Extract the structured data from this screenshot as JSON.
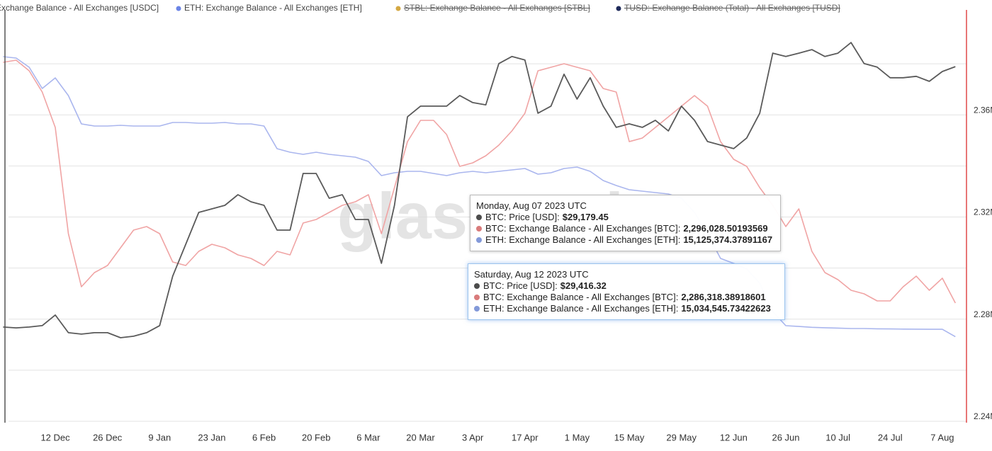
{
  "chart_data": {
    "type": "line",
    "watermark": "glassnode",
    "legend_items": [
      {
        "name": "Exchange Balance - All Exchanges [USDC]",
        "color": null,
        "hidden": false
      },
      {
        "name": "ETH: Exchange Balance - All Exchanges [ETH]",
        "color": "#6b84e6",
        "hidden": false
      },
      {
        "name": "STBL: Exchange Balance - All Exchanges [STBL]",
        "color": "#d4a843",
        "hidden": true
      },
      {
        "name": "TUSD: Exchange Balance (Total) - All Exchanges [TUSD]",
        "color": "#1e2a5a",
        "hidden": true
      }
    ],
    "categories": [
      null,
      null,
      null,
      null,
      "12 Dec",
      null,
      null,
      null,
      "26 Dec",
      null,
      null,
      null,
      "9 Jan",
      null,
      null,
      null,
      "23 Jan",
      null,
      null,
      null,
      "6 Feb",
      null,
      null,
      null,
      "20 Feb",
      null,
      null,
      null,
      "6 Mar",
      null,
      null,
      null,
      "20 Mar",
      null,
      null,
      null,
      "3 Apr",
      null,
      null,
      null,
      "17 Apr",
      null,
      null,
      null,
      "1 May",
      null,
      null,
      null,
      "15 May",
      null,
      null,
      null,
      "29 May",
      null,
      null,
      null,
      "12 Jun",
      null,
      null,
      null,
      "26 Jun",
      null,
      null,
      null,
      "10 Jul",
      null,
      null,
      null,
      "24 Jul",
      null,
      null,
      null,
      "7 Aug",
      null
    ],
    "series": [
      {
        "name": "BTC: Price [USD]",
        "color": "#5a5a5a",
        "axis": "y",
        "values": [
          16920,
          16880,
          16920,
          16990,
          17500,
          16650,
          16580,
          16650,
          16650,
          16410,
          16480,
          16650,
          16990,
          19360,
          20890,
          22420,
          22590,
          22760,
          23270,
          22930,
          22760,
          21570,
          21570,
          24290,
          24290,
          23100,
          23270,
          22080,
          22080,
          19980,
          22760,
          27010,
          27520,
          27520,
          27520,
          28030,
          27690,
          27580,
          29560,
          29900,
          29730,
          27180,
          27520,
          29050,
          27860,
          28880,
          27520,
          26500,
          26670,
          26500,
          26840,
          26330,
          27520,
          26840,
          25820,
          25650,
          25480,
          25990,
          27180,
          30060,
          29900,
          30060,
          30230,
          29900,
          30060,
          30570,
          29560,
          29390,
          28880,
          28880,
          28950,
          28710,
          29179.45,
          29416.32
        ],
        "value_labels": [
          null,
          null,
          null,
          null,
          null,
          null,
          null,
          null,
          null,
          null,
          null,
          null,
          null,
          null,
          null,
          null,
          null,
          null,
          null,
          null,
          null,
          null,
          null,
          null,
          null,
          null,
          null,
          null,
          null,
          null,
          null,
          null,
          null,
          null,
          null,
          null,
          null,
          null,
          null,
          null,
          null,
          null,
          null,
          null,
          null,
          null,
          null,
          null,
          null,
          null,
          null,
          null,
          null,
          null,
          null,
          null,
          null,
          null,
          null,
          null,
          null,
          null,
          null,
          null,
          null,
          null,
          null,
          null,
          null,
          null,
          null,
          null,
          "$29,179.45",
          "$29,416.32"
        ]
      },
      {
        "name": "BTC: Exchange Balance - All Exchanges [BTC]",
        "color": "#f0a4a4",
        "axis": "y2",
        "values": [
          2380590,
          2381420,
          2377260,
          2368950,
          2355080,
          2313490,
          2292690,
          2298230,
          2301010,
          2307940,
          2314870,
          2316260,
          2313490,
          2302390,
          2301010,
          2306550,
          2309330,
          2307940,
          2305170,
          2303780,
          2301010,
          2306550,
          2305170,
          2317640,
          2319030,
          2321800,
          2324580,
          2325960,
          2328740,
          2313490,
          2331510,
          2349530,
          2357850,
          2357850,
          2352310,
          2339830,
          2341210,
          2343990,
          2348150,
          2353690,
          2360630,
          2377260,
          2378650,
          2380040,
          2378650,
          2377260,
          2370330,
          2368950,
          2349530,
          2350920,
          2355080,
          2359240,
          2363400,
          2367560,
          2363400,
          2349530,
          2342600,
          2339830,
          2331510,
          2324580,
          2316260,
          2323190,
          2306550,
          2298230,
          2295460,
          2291300,
          2289910,
          2287140,
          2287140,
          2292690,
          2296850,
          2291300,
          2296028.50193569,
          2286318.38918601
        ],
        "value_labels": [
          null,
          null,
          null,
          null,
          null,
          null,
          null,
          null,
          null,
          null,
          null,
          null,
          null,
          null,
          null,
          null,
          null,
          null,
          null,
          null,
          null,
          null,
          null,
          null,
          null,
          null,
          null,
          null,
          null,
          null,
          null,
          null,
          null,
          null,
          null,
          null,
          null,
          null,
          null,
          null,
          null,
          null,
          null,
          null,
          null,
          null,
          null,
          null,
          null,
          null,
          null,
          null,
          null,
          null,
          null,
          null,
          null,
          null,
          null,
          null,
          null,
          null,
          null,
          null,
          null,
          null,
          null,
          null,
          null,
          null,
          null,
          null,
          "2,296,028.50193569",
          "2,286,318.38918601"
        ]
      },
      {
        "name": "ETH: Exchange Balance - All Exchanges [ETH]",
        "color": "#aab6ee",
        "axis": "y3",
        "values": [
          18462730,
          18445400,
          18332750,
          18072790,
          18202770,
          17986130,
          17639510,
          17613510,
          17613510,
          17622180,
          17613510,
          17613510,
          17613510,
          17656840,
          17656840,
          17648180,
          17648180,
          17656840,
          17639510,
          17639510,
          17613510,
          17336220,
          17292890,
          17266890,
          17292890,
          17266890,
          17249560,
          17232230,
          17180240,
          17006930,
          17041590,
          17058920,
          17058920,
          17032930,
          17006930,
          17041590,
          17058920,
          17041590,
          17058920,
          17076250,
          17093580,
          17024260,
          17041590,
          17093580,
          17110920,
          17058920,
          16946270,
          16885610,
          16833620,
          16816290,
          16798960,
          16781630,
          16729630,
          16556320,
          16296360,
          15993070,
          15932410,
          15863080,
          15689770,
          15343150,
          15169840,
          15160000,
          15150000,
          15145000,
          15140000,
          15135000,
          15135000,
          15132000,
          15130000,
          15128000,
          15127000,
          15126000,
          15125374.37891167,
          15034545.73422623
        ],
        "value_labels": [
          null,
          null,
          null,
          null,
          null,
          null,
          null,
          null,
          null,
          null,
          null,
          null,
          null,
          null,
          null,
          null,
          null,
          null,
          null,
          null,
          null,
          null,
          null,
          null,
          null,
          null,
          null,
          null,
          null,
          null,
          null,
          null,
          null,
          null,
          null,
          null,
          null,
          null,
          null,
          null,
          null,
          null,
          null,
          null,
          null,
          null,
          null,
          null,
          null,
          null,
          null,
          null,
          null,
          null,
          null,
          null,
          null,
          null,
          null,
          null,
          null,
          null,
          null,
          null,
          null,
          null,
          null,
          null,
          null,
          null,
          null,
          null,
          "15,125,374.37891167",
          "15,034,545.73422623"
        ]
      }
    ],
    "ylim": [
      12400,
      32000
    ],
    "y2lim": [
      2240000,
      2400000
    ],
    "y2ticks": [
      {
        "value": 2240000,
        "label": "2.24M"
      },
      {
        "value": 2280000,
        "label": "2.28M"
      },
      {
        "value": 2320000,
        "label": "2.32M"
      },
      {
        "value": 2360000,
        "label": "2.36M"
      }
    ],
    "y3lim": [
      14000000,
      19000000
    ],
    "grid": true,
    "minor_grid": true,
    "tooltips": [
      "Monday, Aug 07 2023 UTC",
      "Saturday, Aug 12 2023 UTC"
    ]
  }
}
